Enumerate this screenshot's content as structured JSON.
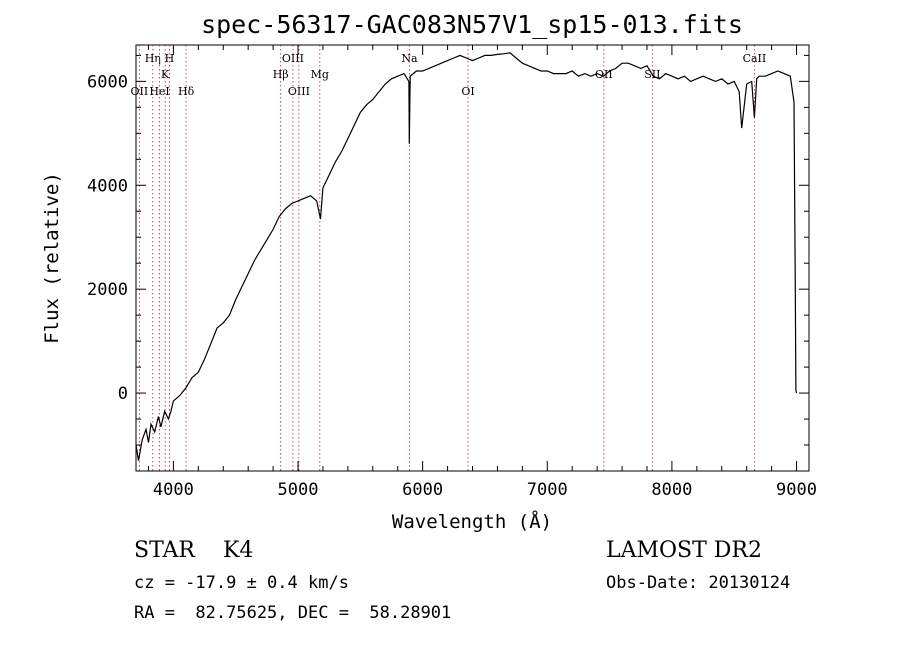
{
  "chart_data": {
    "type": "line",
    "title": "spec-56317-GAC083N57V1_sp15-013.fits",
    "xlabel": "Wavelength (Å)",
    "ylabel": "Flux (relative)",
    "xlim": [
      3700,
      9100
    ],
    "ylim": [
      -1500,
      6700
    ],
    "xticks": [
      4000,
      5000,
      6000,
      7000,
      8000,
      9000
    ],
    "yticks": [
      0,
      2000,
      4000,
      6000
    ],
    "series": [
      {
        "x": [
          3700,
          3720,
          3750,
          3780,
          3800,
          3820,
          3850,
          3880,
          3900,
          3930,
          3960,
          3980,
          4000,
          4050,
          4100,
          4150,
          4200,
          4250,
          4300,
          4350,
          4400,
          4450,
          4500,
          4550,
          4600,
          4650,
          4700,
          4750,
          4800,
          4850,
          4900,
          4950,
          5000,
          5050,
          5100,
          5150,
          5180,
          5200,
          5250,
          5300,
          5350,
          5400,
          5450,
          5500,
          5550,
          5600,
          5650,
          5700,
          5750,
          5800,
          5850,
          5890,
          5893,
          5900,
          5950,
          6000,
          6050,
          6100,
          6150,
          6200,
          6250,
          6300,
          6350,
          6400,
          6450,
          6500,
          6550,
          6600,
          6650,
          6700,
          6750,
          6800,
          6850,
          6900,
          6950,
          7000,
          7050,
          7100,
          7150,
          7200,
          7250,
          7300,
          7350,
          7400,
          7450,
          7500,
          7550,
          7600,
          7650,
          7700,
          7750,
          7800,
          7850,
          7900,
          7950,
          8000,
          8050,
          8100,
          8150,
          8200,
          8250,
          8300,
          8350,
          8400,
          8450,
          8500,
          8540,
          8560,
          8600,
          8640,
          8662,
          8680,
          8700,
          8750,
          8800,
          8850,
          8900,
          8950,
          8980,
          8990,
          8995,
          9000
        ],
        "y": [
          -1000,
          -1300,
          -900,
          -700,
          -950,
          -600,
          -750,
          -450,
          -650,
          -350,
          -500,
          -350,
          -150,
          -50,
          100,
          300,
          400,
          650,
          950,
          1250,
          1350,
          1500,
          1800,
          2050,
          2300,
          2550,
          2750,
          2950,
          3150,
          3400,
          3550,
          3650,
          3700,
          3750,
          3800,
          3700,
          3350,
          3950,
          4200,
          4450,
          4650,
          4900,
          5150,
          5400,
          5550,
          5650,
          5800,
          5950,
          6050,
          6100,
          6150,
          6000,
          4800,
          6100,
          6200,
          6200,
          6250,
          6300,
          6350,
          6400,
          6450,
          6500,
          6450,
          6400,
          6450,
          6500,
          6500,
          6520,
          6530,
          6550,
          6450,
          6350,
          6300,
          6250,
          6200,
          6200,
          6150,
          6150,
          6150,
          6200,
          6100,
          6150,
          6100,
          6150,
          6100,
          6200,
          6250,
          6350,
          6350,
          6300,
          6250,
          6300,
          6100,
          6050,
          6150,
          6100,
          6050,
          6100,
          6000,
          6050,
          6100,
          6050,
          6000,
          6050,
          5950,
          6000,
          5800,
          5100,
          5950,
          6000,
          5300,
          6050,
          6100,
          6100,
          6150,
          6200,
          6150,
          6100,
          5600,
          2000,
          50,
          0
        ]
      }
    ],
    "line_markers": [
      {
        "label": "OII",
        "x": 3727,
        "row": 3
      },
      {
        "label": "Hη",
        "x": 3835,
        "row": 1
      },
      {
        "label": "HeI",
        "x": 3889,
        "row": 3
      },
      {
        "label": "K",
        "x": 3934,
        "row": 2
      },
      {
        "label": "H",
        "x": 3968,
        "row": 1
      },
      {
        "label": "Hδ",
        "x": 4102,
        "row": 3
      },
      {
        "label": "Hβ",
        "x": 4861,
        "row": 2
      },
      {
        "label": "OIII",
        "x": 4959,
        "row": 1
      },
      {
        "label": "OIII",
        "x": 5007,
        "row": 3
      },
      {
        "label": "Mg",
        "x": 5175,
        "row": 2
      },
      {
        "label": "Na",
        "x": 5894,
        "row": 1
      },
      {
        "label": "OI",
        "x": 6364,
        "row": 3
      },
      {
        "label": "OII",
        "x": 7454,
        "row": 2
      },
      {
        "label": "SII",
        "x": 7843,
        "row": 2
      },
      {
        "label": "CaII",
        "x": 8662,
        "row": 1
      }
    ]
  },
  "footer": {
    "left_line1": "STAR    K4",
    "left_line2": "cz = -17.9 ± 0.4 km/s",
    "left_line3": "RA =  82.75625, DEC =  58.28901",
    "right_line1": "LAMOST DR2",
    "right_line2": "Obs-Date: 20130124"
  }
}
